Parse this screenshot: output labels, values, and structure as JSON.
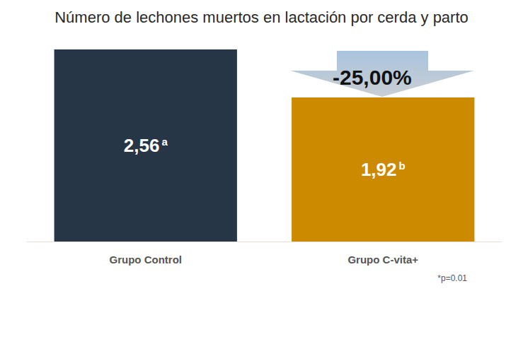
{
  "chart_data": {
    "type": "bar",
    "title": "Número de lechones muertos en lactación por cerda y parto",
    "categories": [
      "Grupo Control",
      "Grupo C-vita+"
    ],
    "values": [
      2.56,
      1.92
    ],
    "value_labels": [
      "2,56",
      "1,92"
    ],
    "significance_letters": [
      "a",
      "b"
    ],
    "colors": [
      "#263646",
      "#cc8a00"
    ],
    "annotation": "-25,00%",
    "note": "*p=0.01",
    "ylim": [
      0,
      2.56
    ],
    "data_labels": true,
    "tick_labels": "x",
    "grid": false
  }
}
